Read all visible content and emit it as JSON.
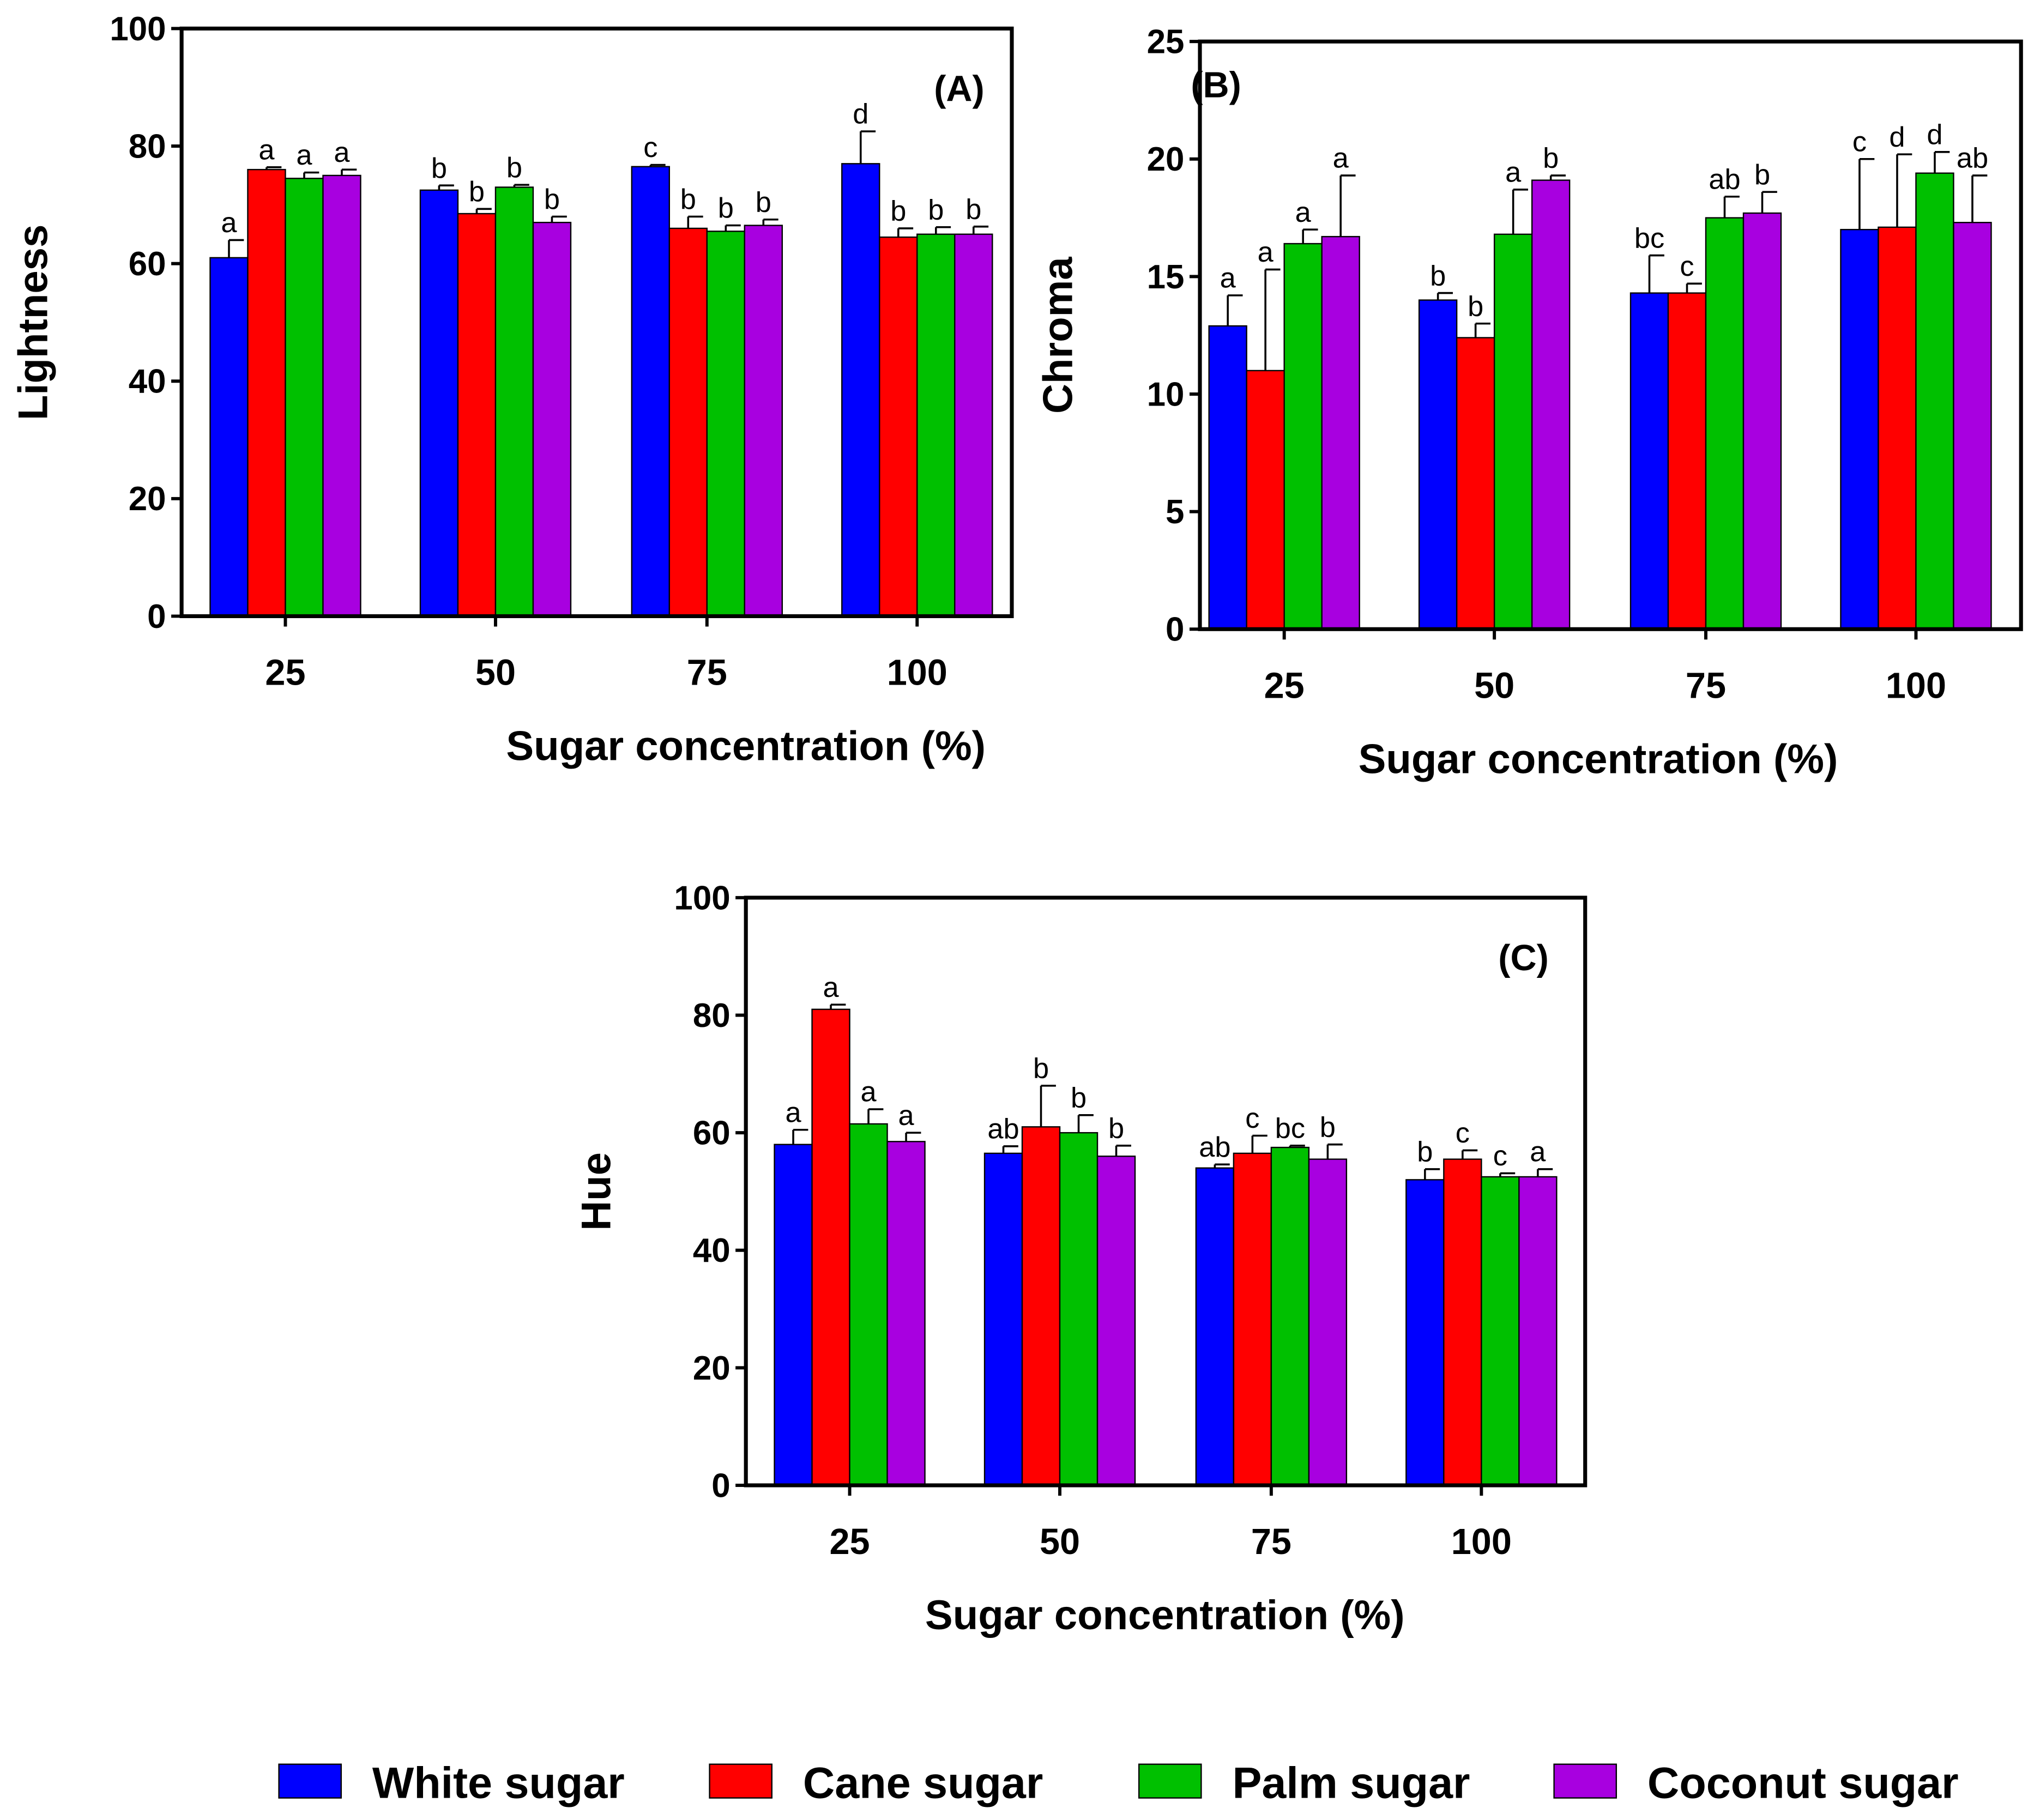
{
  "chart_data": [
    {
      "type": "bar",
      "panel_label": "(A)",
      "xlabel": "Sugar concentration (%)",
      "ylabel": "Lightness",
      "ylim": [
        0,
        100
      ],
      "yticks": [
        "0",
        "20",
        "40",
        "60",
        "80",
        "100"
      ],
      "categories": [
        "25",
        "50",
        "75",
        "100"
      ],
      "series": [
        {
          "name": "White sugar",
          "values": [
            61,
            72.5,
            76.5,
            77
          ],
          "errors": [
            3,
            0.8,
            0.3,
            5.5
          ],
          "letters": [
            "a",
            "b",
            "c",
            "d"
          ]
        },
        {
          "name": "Cane sugar",
          "values": [
            76,
            68.5,
            66,
            64.5
          ],
          "errors": [
            0.4,
            0.8,
            2,
            1.5
          ],
          "letters": [
            "a",
            "b",
            "b",
            "b"
          ]
        },
        {
          "name": "Palm sugar",
          "values": [
            74.5,
            73,
            65.5,
            65
          ],
          "errors": [
            1,
            0.4,
            1,
            1.2
          ],
          "letters": [
            "a",
            "b",
            "b",
            "b"
          ]
        },
        {
          "name": "Coconut sugar",
          "values": [
            75,
            67,
            66.5,
            65
          ],
          "errors": [
            1,
            1,
            1,
            1.3
          ],
          "letters": [
            "a",
            "b",
            "b",
            "b"
          ]
        }
      ]
    },
    {
      "type": "bar",
      "panel_label": "(B)",
      "xlabel": "Sugar concentration (%)",
      "ylabel": "Chroma",
      "ylim": [
        0,
        25
      ],
      "yticks": [
        "0",
        "5",
        "10",
        "15",
        "20",
        "25"
      ],
      "categories": [
        "25",
        "50",
        "75",
        "100"
      ],
      "series": [
        {
          "name": "White sugar",
          "values": [
            12.9,
            14,
            14.3,
            17
          ],
          "errors": [
            1.3,
            0.3,
            1.6,
            3
          ],
          "letters": [
            "a",
            "b",
            "bc",
            "c"
          ]
        },
        {
          "name": "Cane sugar",
          "values": [
            11,
            12.4,
            14.3,
            17.1
          ],
          "errors": [
            4.3,
            0.6,
            0.4,
            3.1
          ],
          "letters": [
            "a",
            "b",
            "c",
            "d"
          ]
        },
        {
          "name": "Palm sugar",
          "values": [
            16.4,
            16.8,
            17.5,
            19.4
          ],
          "errors": [
            0.6,
            1.9,
            0.9,
            0.9
          ],
          "letters": [
            "a",
            "a",
            "ab",
            "d"
          ]
        },
        {
          "name": "Coconut sugar",
          "values": [
            16.7,
            19.1,
            17.7,
            17.3
          ],
          "errors": [
            2.6,
            0.2,
            0.9,
            2
          ],
          "letters": [
            "a",
            "b",
            "b",
            "ab"
          ]
        }
      ]
    },
    {
      "type": "bar",
      "panel_label": "(C)",
      "xlabel": "Sugar concentration (%)",
      "ylabel": "Hue",
      "ylim": [
        0,
        100
      ],
      "yticks": [
        "0",
        "20",
        "40",
        "60",
        "80",
        "100"
      ],
      "categories": [
        "25",
        "50",
        "75",
        "100"
      ],
      "series": [
        {
          "name": "White sugar",
          "values": [
            58,
            56.5,
            54,
            52
          ],
          "errors": [
            2.5,
            1.2,
            0.6,
            1.8
          ],
          "letters": [
            "a",
            "ab",
            "ab",
            "b"
          ]
        },
        {
          "name": "Cane sugar",
          "values": [
            81,
            61,
            56.5,
            55.5
          ],
          "errors": [
            0.8,
            7,
            3,
            1.5
          ],
          "letters": [
            "a",
            "b",
            "c",
            "c"
          ]
        },
        {
          "name": "Palm sugar",
          "values": [
            61.5,
            60,
            57.5,
            52.5
          ],
          "errors": [
            2.5,
            3,
            0.3,
            0.6
          ],
          "letters": [
            "a",
            "b",
            "bc",
            "c"
          ]
        },
        {
          "name": "Coconut sugar",
          "values": [
            58.5,
            56,
            55.5,
            52.5
          ],
          "errors": [
            1.5,
            1.8,
            2.5,
            1.3
          ],
          "letters": [
            "a",
            "b",
            "b",
            "a"
          ]
        }
      ]
    }
  ],
  "legend": {
    "placement": "bottom",
    "items": [
      {
        "label": "White sugar",
        "color": "#0000ff"
      },
      {
        "label": "Cane sugar",
        "color": "#ff0000"
      },
      {
        "label": "Palm sugar",
        "color": "#00c000"
      },
      {
        "label": "Coconut sugar",
        "color": "#a800e0"
      }
    ]
  }
}
